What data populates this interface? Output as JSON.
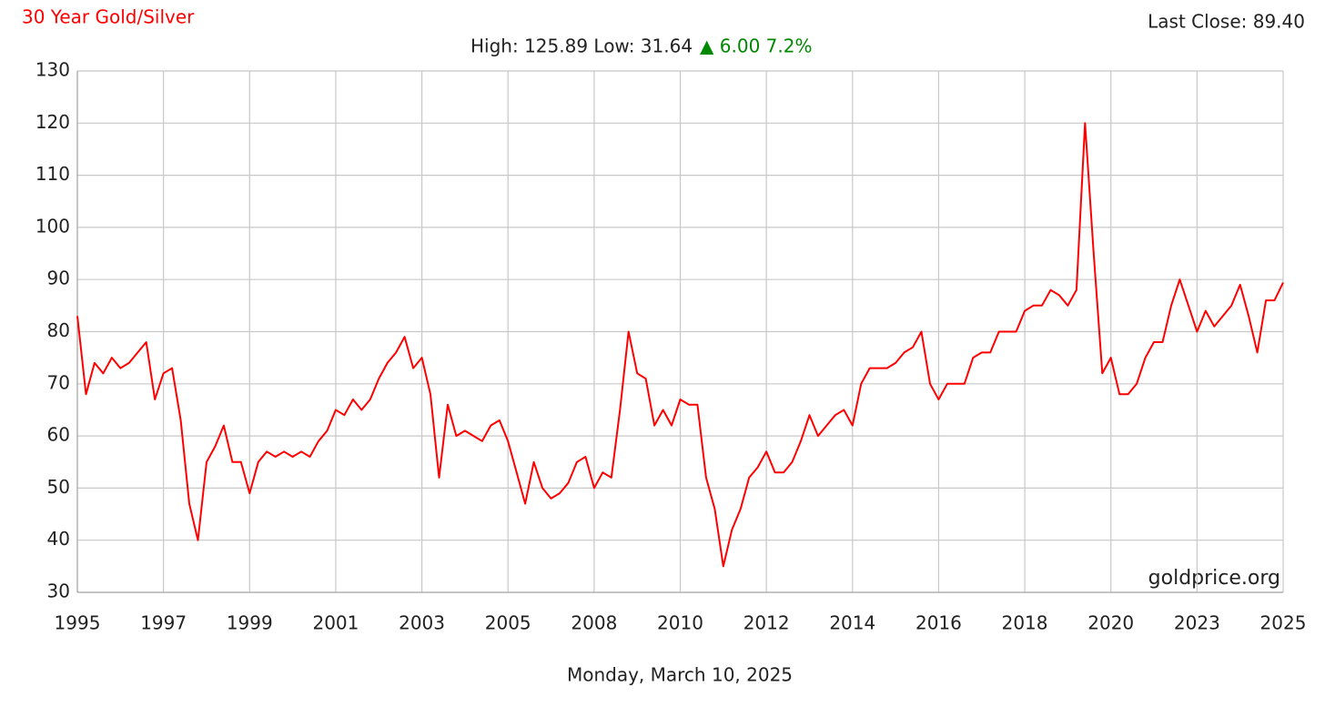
{
  "chart_data": {
    "type": "line",
    "title": "30 Year Gold/Silver",
    "last_close": "Last Close: 89.40",
    "high_low": "High: 125.89 Low: 31.64",
    "change": "▲ 6.00 7.2%",
    "watermark": "goldprice.org",
    "footer": "Monday, March 10, 2025",
    "categories": [
      "1995",
      null,
      null,
      null,
      null,
      null,
      null,
      null,
      null,
      null,
      "1997",
      null,
      null,
      null,
      null,
      null,
      null,
      null,
      null,
      null,
      "1999",
      null,
      null,
      null,
      null,
      null,
      null,
      null,
      null,
      null,
      "2001",
      null,
      null,
      null,
      null,
      null,
      null,
      null,
      null,
      null,
      "2003",
      null,
      null,
      null,
      null,
      null,
      null,
      null,
      null,
      null,
      "2005",
      null,
      null,
      null,
      null,
      null,
      null,
      null,
      null,
      null,
      "2008",
      null,
      null,
      null,
      null,
      null,
      null,
      null,
      null,
      null,
      "2010",
      null,
      null,
      null,
      null,
      null,
      null,
      null,
      null,
      null,
      "2012",
      null,
      null,
      null,
      null,
      null,
      null,
      null,
      null,
      null,
      "2014",
      null,
      null,
      null,
      null,
      null,
      null,
      null,
      null,
      null,
      "2016",
      null,
      null,
      null,
      null,
      null,
      null,
      null,
      null,
      null,
      "2018",
      null,
      null,
      null,
      null,
      null,
      null,
      null,
      null,
      null,
      "2020",
      null,
      null,
      null,
      null,
      null,
      null,
      null,
      null,
      null,
      "2023",
      null,
      null,
      null,
      null,
      null,
      null,
      null,
      null,
      null,
      "2025"
    ],
    "series": [
      {
        "name": "Gold/Silver",
        "color": "#ff0000",
        "values": [
          83,
          68,
          74,
          72,
          75,
          73,
          74,
          76,
          78,
          67,
          72,
          73,
          63,
          47,
          40,
          55,
          58,
          62,
          55,
          55,
          49,
          55,
          57,
          56,
          57,
          56,
          57,
          56,
          59,
          61,
          65,
          64,
          67,
          65,
          67,
          71,
          74,
          76,
          79,
          73,
          75,
          68,
          52,
          66,
          60,
          61,
          60,
          59,
          62,
          63,
          59,
          53,
          47,
          55,
          50,
          48,
          49,
          51,
          55,
          56,
          50,
          53,
          52,
          65,
          80,
          72,
          71,
          62,
          65,
          62,
          67,
          66,
          66,
          52,
          46,
          35,
          42,
          46,
          52,
          54,
          57,
          53,
          53,
          55,
          59,
          64,
          60,
          62,
          64,
          65,
          62,
          70,
          73,
          73,
          73,
          74,
          76,
          77,
          80,
          70,
          67,
          70,
          70,
          70,
          75,
          76,
          76,
          80,
          80,
          80,
          84,
          85,
          85,
          88,
          87,
          85,
          88,
          120,
          95,
          72,
          75,
          68,
          68,
          70,
          75,
          78,
          78,
          85,
          90,
          85,
          80,
          84,
          81,
          83,
          85,
          89,
          83,
          76,
          86,
          86,
          89.4
        ]
      }
    ],
    "ylim": [
      30,
      130
    ],
    "yticks": [
      30,
      40,
      50,
      60,
      70,
      80,
      90,
      100,
      110,
      120,
      130
    ],
    "grid": true
  }
}
